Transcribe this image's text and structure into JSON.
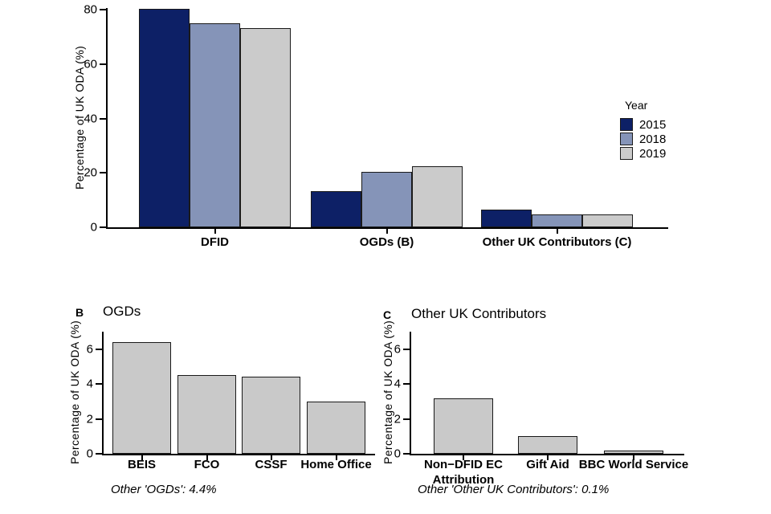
{
  "colors": {
    "year_2015": "#0d2066",
    "year_2018": "#8594b8",
    "year_2019": "#cbcbcb",
    "panel_bar_fill": "#c9c9c9",
    "bar_border": "#1a1a1a",
    "axis": "#000000",
    "text": "#000000"
  },
  "chart_data": [
    {
      "id": "main",
      "type": "bar",
      "ylabel": "Percentage of UK ODA (%)",
      "categories": [
        "DFID",
        "OGDs (B)",
        "Other UK Contributors (C)"
      ],
      "series": [
        {
          "name": "2015",
          "color_key": "year_2015",
          "values": [
            80.4,
            13.2,
            6.4
          ]
        },
        {
          "name": "2018",
          "color_key": "year_2018",
          "values": [
            74.9,
            20.4,
            4.8
          ]
        },
        {
          "name": "2019",
          "color_key": "year_2019",
          "values": [
            73.2,
            22.4,
            4.6
          ]
        }
      ],
      "yticks": [
        0,
        20,
        40,
        60,
        80
      ],
      "ylim": [
        0,
        80.6
      ],
      "grid": false,
      "legend": {
        "title": "Year",
        "position": "right",
        "entries": [
          "2015",
          "2018",
          "2019"
        ]
      }
    },
    {
      "id": "ogds",
      "type": "bar",
      "panel_label": "B",
      "title": "OGDs",
      "ylabel": "Percentage of UK ODA (%)",
      "categories": [
        "BEIS",
        "FCO",
        "CSSF",
        "Home Office"
      ],
      "values": [
        6.4,
        4.5,
        4.4,
        3.0
      ],
      "yticks": [
        0,
        2,
        4,
        6
      ],
      "ylim": [
        0,
        7
      ],
      "grid": false,
      "footnote": "Other 'OGDs': 4.4%"
    },
    {
      "id": "other",
      "type": "bar",
      "panel_label": "C",
      "title": "Other UK Contributors",
      "ylabel": "Percentage of UK ODA (%)",
      "categories": [
        "Non−DFID EC\nAttribution",
        "Gift Aid",
        "BBC World Service"
      ],
      "values": [
        3.2,
        1.0,
        0.2
      ],
      "yticks": [
        0,
        2,
        4,
        6
      ],
      "ylim": [
        0,
        7
      ],
      "grid": false,
      "footnote": "Other 'Other UK Contributors': 0.1%"
    }
  ]
}
